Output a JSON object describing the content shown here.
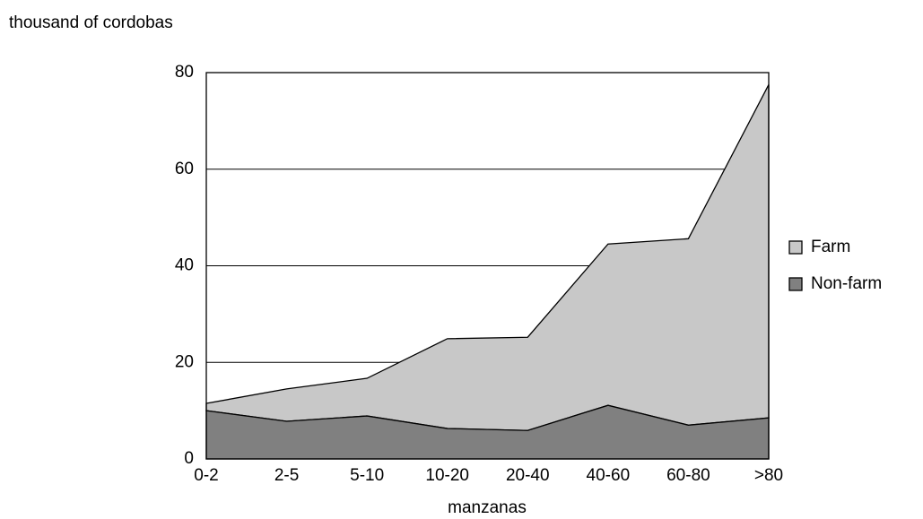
{
  "chart_data": {
    "type": "stacked_area",
    "y_axis_label": "thousand of cordobas",
    "x_axis_label": "manzanas",
    "categories": [
      "0-2",
      "2-5",
      "5-10",
      "10-20",
      "20-40",
      "40-60",
      "60-80",
      ">80"
    ],
    "series": [
      {
        "name": "Non-farm",
        "color": "#808080",
        "values": [
          10.0,
          7.8,
          8.9,
          6.3,
          5.9,
          11.1,
          7.0,
          8.5
        ]
      },
      {
        "name": "Farm",
        "color": "#c8c8c8",
        "values": [
          1.5,
          6.7,
          7.8,
          18.6,
          19.3,
          33.4,
          38.6,
          69.0
        ]
      }
    ],
    "ylim": [
      0,
      80
    ],
    "yticks": [
      0,
      20,
      40,
      60,
      80
    ],
    "grid": true,
    "legend": "right"
  }
}
